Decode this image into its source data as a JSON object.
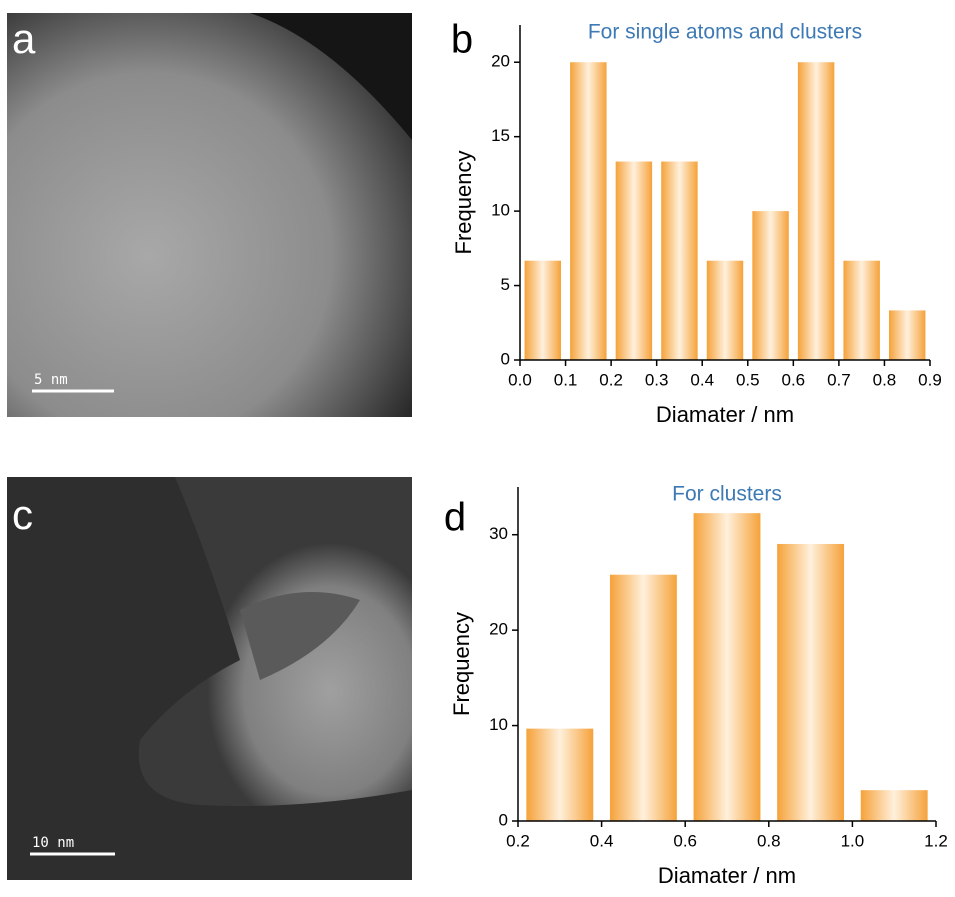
{
  "images": [
    {
      "label": "a",
      "scale_bar": "5 nm"
    },
    {
      "label": "c",
      "scale_bar": "10 nm"
    }
  ],
  "chart_data": [
    {
      "type": "histogram",
      "panel_label": "b",
      "title": "For single atoms and clusters",
      "xlabel": "Diamater / nm",
      "ylabel": "Frequency",
      "bins": [
        0.0,
        0.1,
        0.2,
        0.3,
        0.4,
        0.5,
        0.6,
        0.7,
        0.8,
        0.9
      ],
      "values": [
        6.67,
        20,
        13.33,
        13.33,
        6.67,
        10,
        20,
        6.67,
        3.33
      ],
      "color": "#f5a23a",
      "title_color": "#3d7ab5",
      "xlim": [
        0,
        0.9
      ],
      "ylim": [
        0,
        22.5
      ],
      "xticks": [
        {
          "value": 0,
          "label": "0.0"
        },
        0.1,
        0.2,
        0.3,
        0.4,
        0.5,
        0.6,
        0.7,
        0.8,
        0.9
      ],
      "yticks": [
        0,
        5,
        10,
        15,
        20
      ]
    },
    {
      "type": "histogram",
      "panel_label": "d",
      "title": "For clusters",
      "xlabel": "Diamater / nm",
      "ylabel": "Frequency",
      "bins": [
        0.2,
        0.4,
        0.6,
        0.8,
        1.0,
        1.2
      ],
      "values": [
        9.68,
        25.81,
        32.26,
        29.03,
        3.23
      ],
      "color": "#f5a23a",
      "title_color": "#3d7ab5",
      "xlim": [
        0.2,
        1.2
      ],
      "ylim": [
        0,
        35
      ],
      "xticks": [
        0.2,
        0.4,
        0.6,
        0.8,
        {
          "value": 1.0,
          "label": "1.0"
        },
        1.2
      ],
      "yticks": [
        0,
        10,
        20,
        30
      ]
    }
  ]
}
